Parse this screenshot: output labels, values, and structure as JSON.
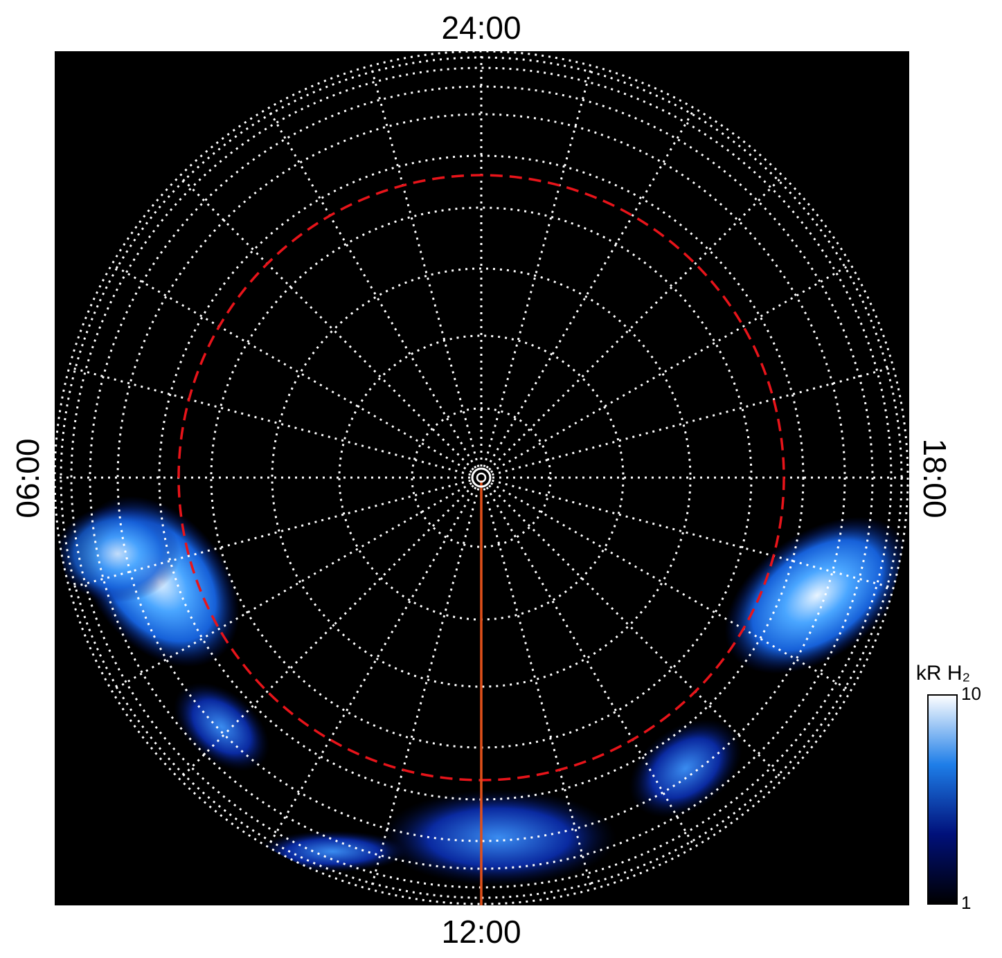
{
  "chart_data": {
    "type": "polar-image",
    "local_time_labels": {
      "top": "24:00",
      "left": "06:00",
      "bottom": "12:00",
      "right": "18:00"
    },
    "colorbar": {
      "label": "kR H₂",
      "ylim": [
        1,
        10
      ],
      "yticks": [
        1,
        10
      ],
      "log_scale": true,
      "colors": [
        "#000000",
        "#00107a",
        "#1e7ee8",
        "#ffffff"
      ]
    }
  }
}
